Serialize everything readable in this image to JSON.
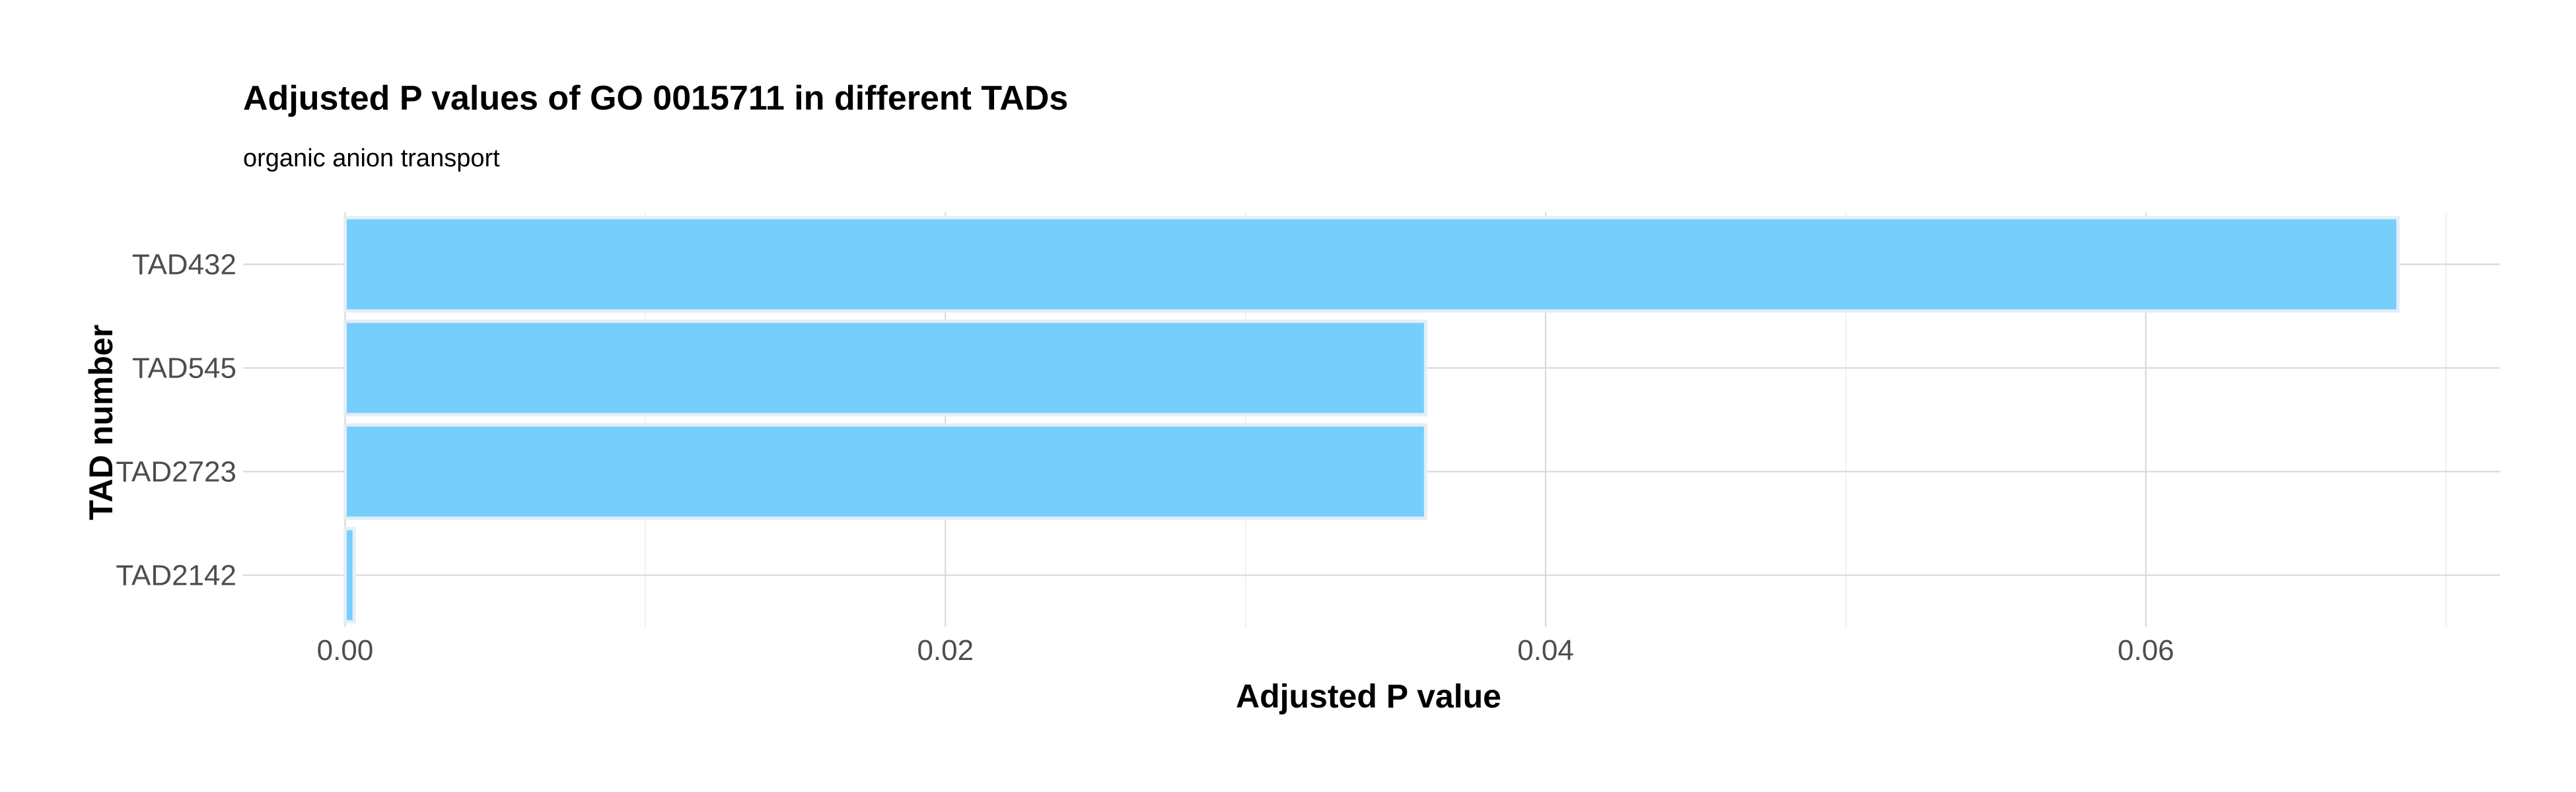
{
  "chart_data": {
    "type": "bar",
    "orientation": "horizontal",
    "title": "Adjusted P values of GO 0015711 in different TADs",
    "subtitle": "organic anion transport",
    "xlabel": "Adjusted P value",
    "ylabel": "TAD number",
    "categories": [
      "TAD432",
      "TAD545",
      "TAD2723",
      "TAD2142"
    ],
    "values": [
      0.0684,
      0.036,
      0.036,
      0.0003
    ],
    "xlim": [
      -0.0034,
      0.0718
    ],
    "xticks": [
      0,
      0.02,
      0.04,
      0.06
    ],
    "xtick_labels": [
      "0.00",
      "0.02",
      "0.04",
      "0.06"
    ],
    "bar_color": "#76cefc",
    "grid": true,
    "legend": "none"
  }
}
